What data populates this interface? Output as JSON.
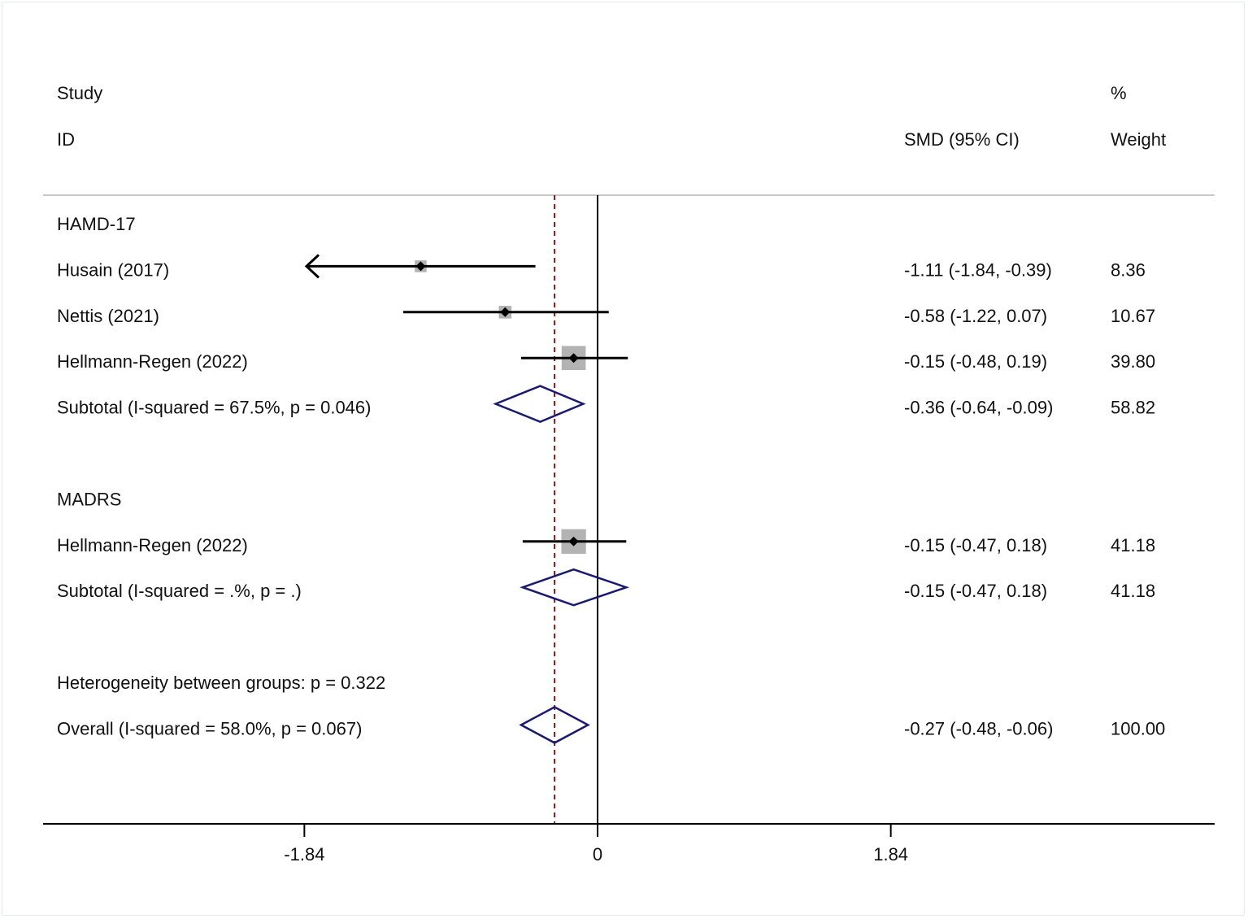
{
  "header": {
    "study_line1": "Study",
    "study_line2": "ID",
    "effect_label": "SMD (95% CI)",
    "weight_line1": "%",
    "weight_line2": "Weight"
  },
  "chart_data": {
    "type": "forest",
    "measure": "SMD",
    "xlim": [
      -2.75,
      3.88
    ],
    "xticks": [
      {
        "value": -1.84,
        "label": "-1.84"
      },
      {
        "value": 0,
        "label": "0"
      },
      {
        "value": 1.84,
        "label": "1.84"
      }
    ],
    "null_line": 0,
    "overall_line": -0.27,
    "rows": [
      {
        "kind": "group",
        "label": "HAMD-17"
      },
      {
        "kind": "study",
        "label": "Husain (2017)",
        "est": -1.11,
        "lo": -1.84,
        "hi": -0.39,
        "weight": 8.36,
        "ci_text": "-1.11 (-1.84, -0.39)",
        "weight_text": "8.36",
        "arrow_left": true
      },
      {
        "kind": "study",
        "label": "Nettis (2021)",
        "est": -0.58,
        "lo": -1.22,
        "hi": 0.07,
        "weight": 10.67,
        "ci_text": "-0.58 (-1.22, 0.07)",
        "weight_text": "10.67"
      },
      {
        "kind": "study",
        "label": "Hellmann-Regen (2022)",
        "est": -0.15,
        "lo": -0.48,
        "hi": 0.19,
        "weight": 39.8,
        "ci_text": "-0.15 (-0.48, 0.19)",
        "weight_text": "39.80"
      },
      {
        "kind": "subtotal",
        "label": "Subtotal  (I-squared = 67.5%, p = 0.046)",
        "est": -0.36,
        "lo": -0.64,
        "hi": -0.09,
        "ci_text": "-0.36 (-0.64, -0.09)",
        "weight_text": "58.82"
      },
      {
        "kind": "blank"
      },
      {
        "kind": "group",
        "label": "MADRS"
      },
      {
        "kind": "study",
        "label": "Hellmann-Regen (2022)",
        "est": -0.15,
        "lo": -0.47,
        "hi": 0.18,
        "weight": 41.18,
        "ci_text": "-0.15 (-0.47, 0.18)",
        "weight_text": "41.18"
      },
      {
        "kind": "subtotal",
        "label": "Subtotal  (I-squared = .%, p = .)",
        "est": -0.15,
        "lo": -0.47,
        "hi": 0.18,
        "ci_text": "-0.15 (-0.47, 0.18)",
        "weight_text": "41.18"
      },
      {
        "kind": "blank"
      },
      {
        "kind": "text",
        "label": "Heterogeneity between groups: p = 0.322"
      },
      {
        "kind": "overall",
        "label": "Overall  (I-squared = 58.0%, p = 0.067)",
        "est": -0.27,
        "lo": -0.48,
        "hi": -0.06,
        "ci_text": "-0.27 (-0.48, -0.06)",
        "weight_text": "100.00"
      }
    ],
    "colors": {
      "box": "#b3b3b3",
      "diamond": "#1a1a6e",
      "overall_line": "#8b1a1a",
      "ci_line": "#000000",
      "separator": "#c8c8c8"
    }
  }
}
